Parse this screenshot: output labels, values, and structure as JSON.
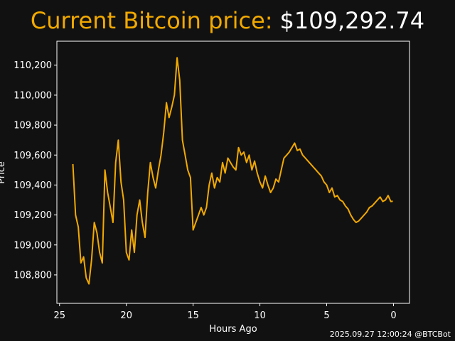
{
  "title": {
    "prefix": "Current Bitcoin price:",
    "price": "$109,292.74",
    "prefix_color": "#f2a900",
    "price_color": "#ffffff"
  },
  "footer": "2025.09.27 12:00:24 @BTCBot",
  "colors": {
    "background": "#111111",
    "axes": "#ffffff",
    "line": "#f2a900"
  },
  "chart_data": {
    "type": "line",
    "title": "Current Bitcoin price: $109,292.74",
    "xlabel": "Hours Ago",
    "ylabel": "Price",
    "x_reversed": true,
    "xlim": [
      25.2,
      -1.2
    ],
    "ylim": [
      108610,
      110360
    ],
    "grid": false,
    "x_ticks": [
      25,
      20,
      15,
      10,
      5,
      0
    ],
    "x_tick_labels": [
      "25",
      "20",
      "15",
      "10",
      "5",
      "0"
    ],
    "y_ticks": [
      108800,
      109000,
      109200,
      109400,
      109600,
      109800,
      110000,
      110200
    ],
    "y_tick_labels": [
      "108,800",
      "109,000",
      "109,200",
      "109,400",
      "109,600",
      "109,800",
      "110,000",
      "110,200"
    ],
    "series": [
      {
        "x": [
          24,
          23.8,
          23.6,
          23.4,
          23.2,
          23.0,
          22.8,
          22.6,
          22.4,
          22.2,
          22.0,
          21.8,
          21.6,
          21.4,
          21.2,
          21.0,
          20.8,
          20.6,
          20.4,
          20.2,
          20.0,
          19.8,
          19.6,
          19.4,
          19.2,
          19.0,
          18.8,
          18.6,
          18.4,
          18.2,
          18.0,
          17.8,
          17.6,
          17.4,
          17.2,
          17.0,
          16.8,
          16.6,
          16.4,
          16.2,
          16.0,
          15.8,
          15.6,
          15.4,
          15.2,
          15.0,
          14.8,
          14.6,
          14.4,
          14.2,
          14.0,
          13.8,
          13.6,
          13.4,
          13.2,
          13.0,
          12.8,
          12.6,
          12.4,
          12.2,
          12.0,
          11.8,
          11.6,
          11.4,
          11.2,
          11.0,
          10.8,
          10.6,
          10.4,
          10.2,
          10.0,
          9.8,
          9.6,
          9.4,
          9.2,
          9.0,
          8.8,
          8.6,
          8.4,
          8.2,
          8.0,
          7.8,
          7.6,
          7.4,
          7.2,
          7.0,
          6.8,
          6.6,
          6.4,
          6.2,
          6.0,
          5.8,
          5.6,
          5.4,
          5.2,
          5.0,
          4.8,
          4.6,
          4.4,
          4.2,
          4.0,
          3.8,
          3.6,
          3.4,
          3.2,
          3.0,
          2.8,
          2.6,
          2.4,
          2.2,
          2.0,
          1.8,
          1.6,
          1.4,
          1.2,
          1.0,
          0.8,
          0.6,
          0.4,
          0.2,
          0.05
        ],
        "y": [
          109540,
          109200,
          109120,
          108880,
          108920,
          108780,
          108740,
          108900,
          109150,
          109080,
          108950,
          108880,
          109500,
          109350,
          109250,
          109150,
          109550,
          109700,
          109420,
          109300,
          108950,
          108900,
          109100,
          108950,
          109200,
          109300,
          109150,
          109050,
          109350,
          109550,
          109450,
          109380,
          109500,
          109600,
          109750,
          109950,
          109850,
          109920,
          110000,
          110250,
          110100,
          109700,
          109600,
          109500,
          109450,
          109100,
          109150,
          109200,
          109250,
          109200,
          109250,
          109400,
          109480,
          109380,
          109450,
          109420,
          109550,
          109480,
          109580,
          109550,
          109520,
          109500,
          109650,
          109600,
          109620,
          109550,
          109600,
          109500,
          109560,
          109480,
          109420,
          109380,
          109460,
          109400,
          109350,
          109380,
          109440,
          109420,
          109500,
          109580,
          109600,
          109620,
          109650,
          109680,
          109630,
          109640,
          109600,
          109580,
          109560,
          109540,
          109520,
          109500,
          109480,
          109460,
          109420,
          109400,
          109350,
          109380,
          109320,
          109330,
          109300,
          109290,
          109260,
          109240,
          109200,
          109170,
          109150,
          109160,
          109180,
          109200,
          109220,
          109250,
          109260,
          109280,
          109300,
          109320,
          109290,
          109300,
          109330,
          109290,
          109292
        ]
      }
    ]
  }
}
